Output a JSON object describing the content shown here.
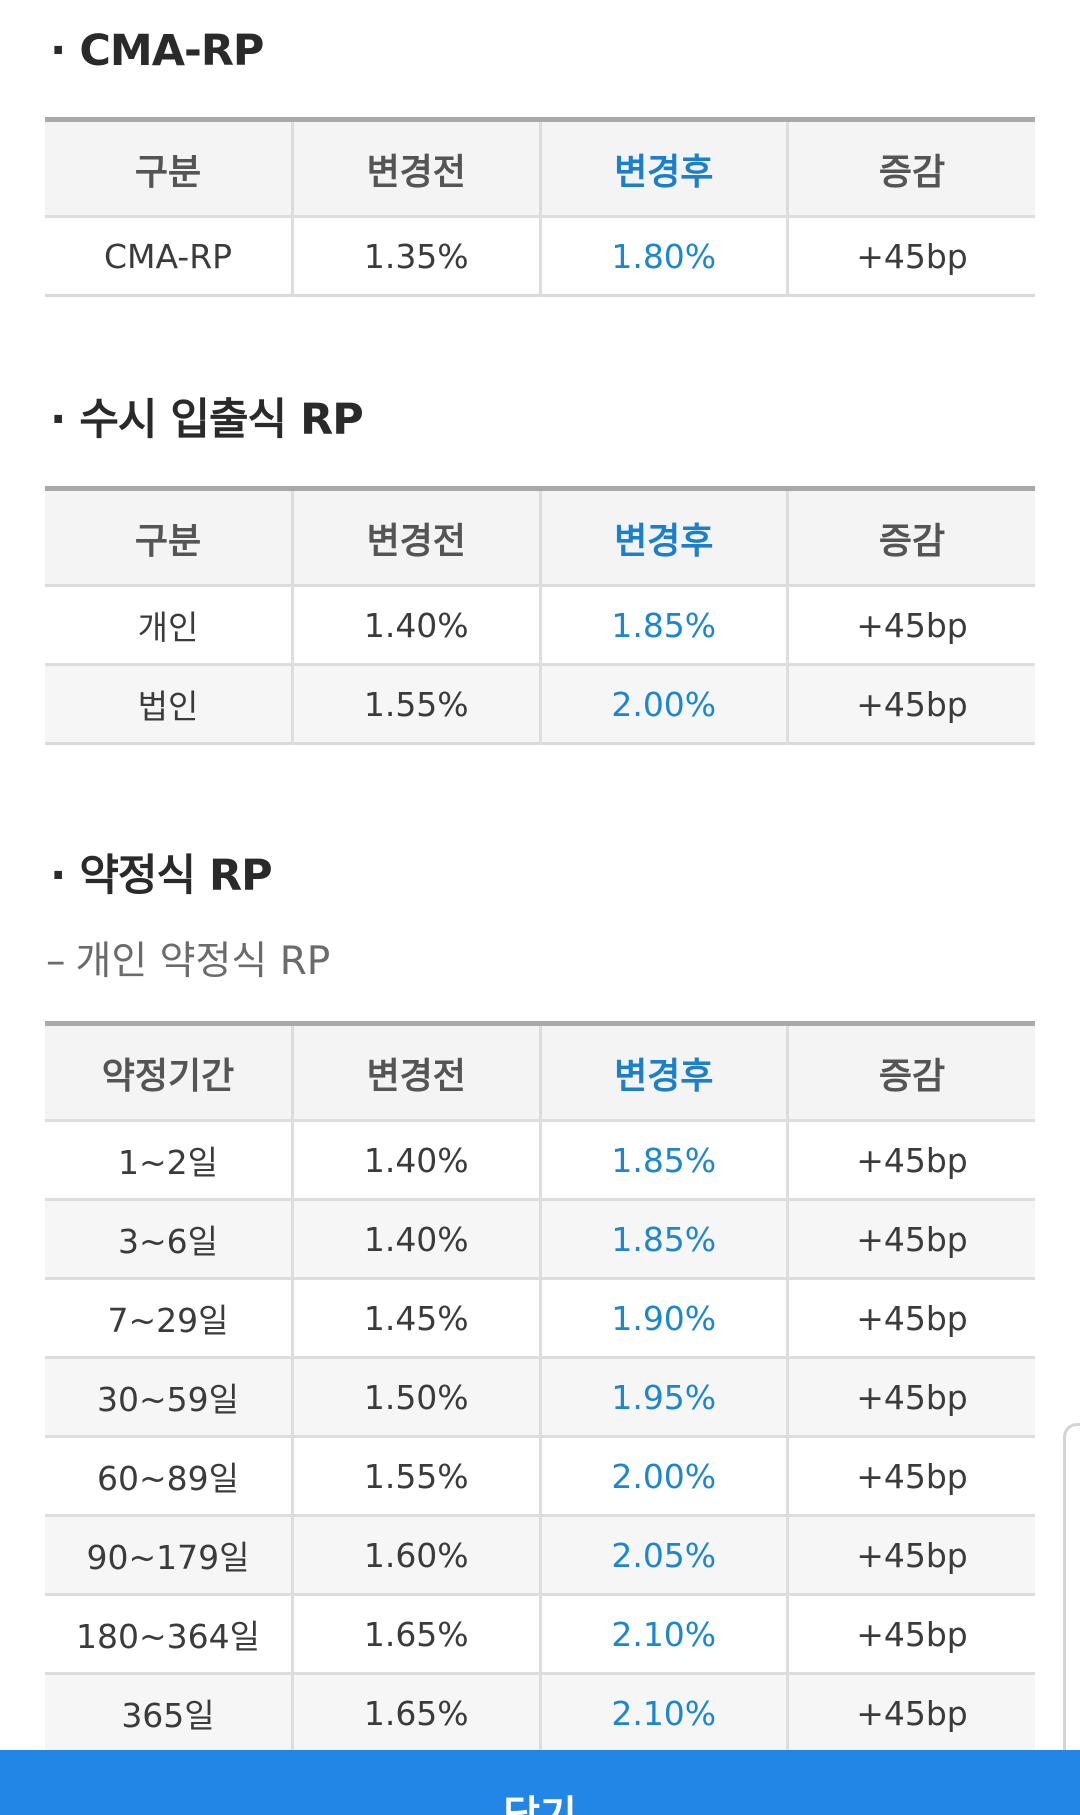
{
  "section_cma": {
    "title": "CMA-RP",
    "headers": [
      "구분",
      "변경전",
      "변경후",
      "증감"
    ],
    "rows": [
      [
        "CMA-RP",
        "1.35%",
        "1.80%",
        "+45bp"
      ]
    ]
  },
  "section_demand": {
    "title": "수시 입출식 RP",
    "headers": [
      "구분",
      "변경전",
      "변경후",
      "증감"
    ],
    "rows": [
      [
        "개인",
        "1.40%",
        "1.85%",
        "+45bp"
      ],
      [
        "법인",
        "1.55%",
        "2.00%",
        "+45bp"
      ]
    ]
  },
  "section_term": {
    "title": "약정식 RP",
    "subtitle": "개인 약정식 RP",
    "headers": [
      "약정기간",
      "변경전",
      "변경후",
      "증감"
    ],
    "rows": [
      [
        "1~2일",
        "1.40%",
        "1.85%",
        "+45bp"
      ],
      [
        "3~6일",
        "1.40%",
        "1.85%",
        "+45bp"
      ],
      [
        "7~29일",
        "1.45%",
        "1.90%",
        "+45bp"
      ],
      [
        "30~59일",
        "1.50%",
        "1.95%",
        "+45bp"
      ],
      [
        "60~89일",
        "1.55%",
        "2.00%",
        "+45bp"
      ],
      [
        "90~179일",
        "1.60%",
        "2.05%",
        "+45bp"
      ],
      [
        "180~364일",
        "1.65%",
        "2.10%",
        "+45bp"
      ],
      [
        "365일",
        "1.65%",
        "2.10%",
        "+45bp"
      ]
    ]
  },
  "bullet": "·",
  "subtitle_dash": "–",
  "close_button": "닫기",
  "colors": {
    "accent_blue": "#1c86cf",
    "button_blue": "#2186e6",
    "header_bg": "#f4f4f5"
  }
}
